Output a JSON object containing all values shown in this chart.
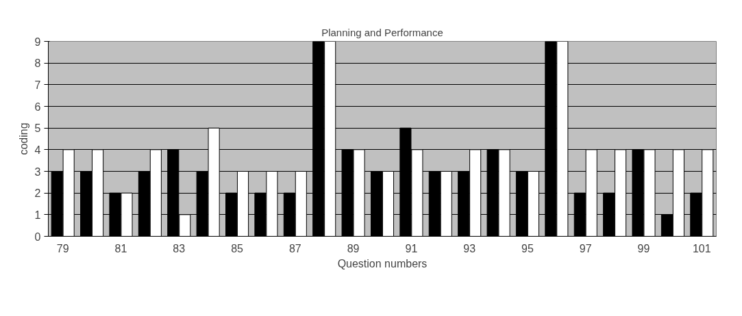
{
  "chart_data": {
    "type": "bar",
    "title": "Planning and Performance",
    "xlabel": "Question numbers",
    "ylabel": "coding",
    "categories": [
      "79",
      null,
      "81",
      null,
      "83",
      null,
      "85",
      null,
      "87",
      null,
      "89",
      null,
      "91",
      null,
      "93",
      null,
      "95",
      null,
      "97",
      null,
      "99",
      null,
      "101"
    ],
    "series": [
      {
        "color": "#000000",
        "values": [
          3,
          3,
          2,
          3,
          4,
          3,
          2,
          2,
          2,
          9,
          4,
          3,
          5,
          3,
          3,
          4,
          3,
          9,
          2,
          2,
          4,
          1,
          2
        ]
      },
      {
        "color": "#ffffff",
        "values": [
          4,
          4,
          2,
          4,
          1,
          5,
          3,
          3,
          3,
          9,
          4,
          3,
          4,
          3,
          4,
          4,
          3,
          9,
          4,
          4,
          4,
          4,
          4
        ]
      }
    ],
    "ylim": [
      0,
      9
    ],
    "yticks": [
      0,
      1,
      2,
      3,
      4,
      5,
      6,
      7,
      8,
      9
    ],
    "grid": "y"
  }
}
